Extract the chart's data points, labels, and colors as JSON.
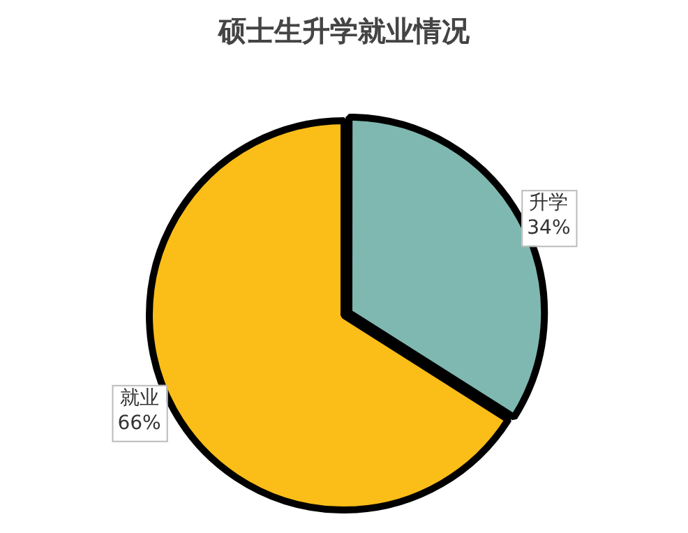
{
  "chart_data": {
    "type": "pie",
    "title": "硕士生升学就业情况",
    "categories": [
      "升学",
      "就业"
    ],
    "values": [
      34,
      66
    ],
    "value_labels": [
      "34%",
      "66%"
    ],
    "colors": [
      "#7fb8b0",
      "#fbbd17"
    ],
    "legend": false
  }
}
